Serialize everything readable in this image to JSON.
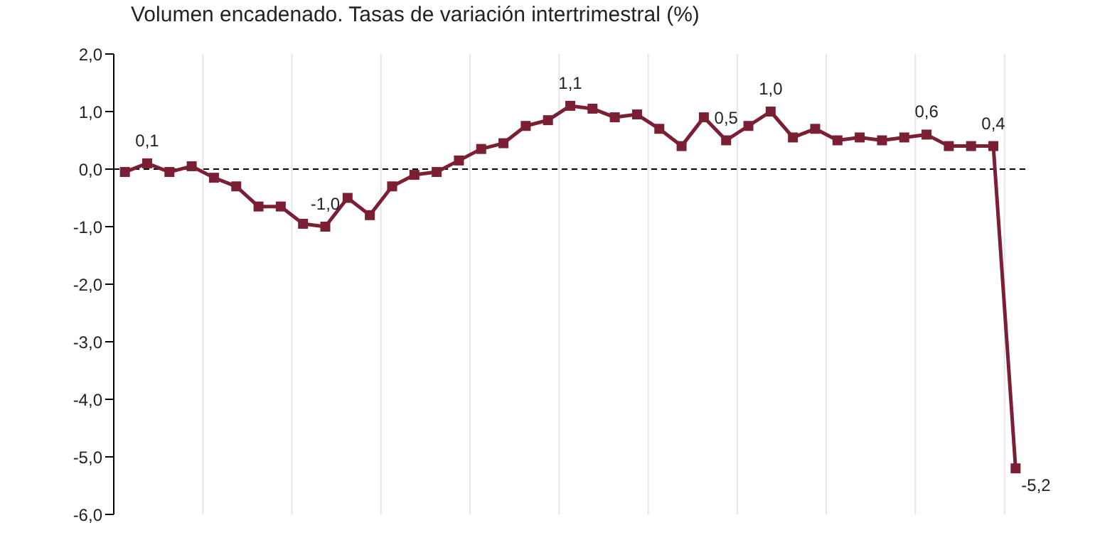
{
  "chart_data": {
    "type": "line",
    "title": "Volumen encadenado. Tasas de variación intertrimestral (%)",
    "categories": [
      null,
      null,
      null,
      null,
      null,
      null,
      null,
      null,
      null,
      null,
      null,
      null,
      null,
      null,
      null,
      null,
      null,
      null,
      null,
      null,
      null,
      null,
      null,
      null,
      null,
      null,
      null,
      null,
      null,
      null,
      null,
      null,
      null,
      null,
      null,
      null,
      null,
      null,
      null,
      null,
      null
    ],
    "series": [
      {
        "color": "#7b1f35",
        "values": [
          -0.05,
          0.1,
          -0.05,
          0.05,
          -0.15,
          -0.3,
          -0.65,
          -0.65,
          -0.95,
          -1.0,
          -0.5,
          -0.8,
          -0.3,
          -0.1,
          -0.05,
          0.15,
          0.35,
          0.45,
          0.75,
          0.85,
          1.1,
          1.05,
          0.9,
          0.95,
          0.7,
          0.4,
          0.9,
          0.5,
          0.75,
          1.0,
          0.55,
          0.7,
          0.5,
          0.55,
          0.5,
          0.55,
          0.6,
          0.4,
          0.4,
          0.4,
          -5.2
        ],
        "value_labels": [
          null,
          "0,1",
          null,
          null,
          null,
          null,
          null,
          null,
          null,
          "-1,0",
          null,
          null,
          null,
          null,
          null,
          null,
          null,
          null,
          null,
          null,
          "1,1",
          null,
          null,
          null,
          null,
          null,
          null,
          "0,5",
          null,
          "1,0",
          null,
          null,
          null,
          null,
          null,
          null,
          "0,6",
          null,
          null,
          "0,4",
          "-5,2"
        ]
      }
    ],
    "ylim": [
      -6,
      2
    ],
    "yticks": [
      {
        "value": -6,
        "label": "-6,0"
      },
      {
        "value": -5,
        "label": "-5,0"
      },
      {
        "value": -4,
        "label": "-4,0"
      },
      {
        "value": -3,
        "label": "-3,0"
      },
      {
        "value": -2,
        "label": "-2,0"
      },
      {
        "value": -1,
        "label": "-1,0"
      },
      {
        "value": 0,
        "label": "0,0"
      },
      {
        "value": 1,
        "label": "1,0"
      },
      {
        "value": 2,
        "label": "2,0"
      }
    ],
    "ref_lines": [
      {
        "axis": "y",
        "value": 0,
        "label": null,
        "color": "#000000",
        "line_style": "dashed"
      }
    ],
    "grid": "x",
    "marker": "square",
    "line_style": "solid"
  }
}
